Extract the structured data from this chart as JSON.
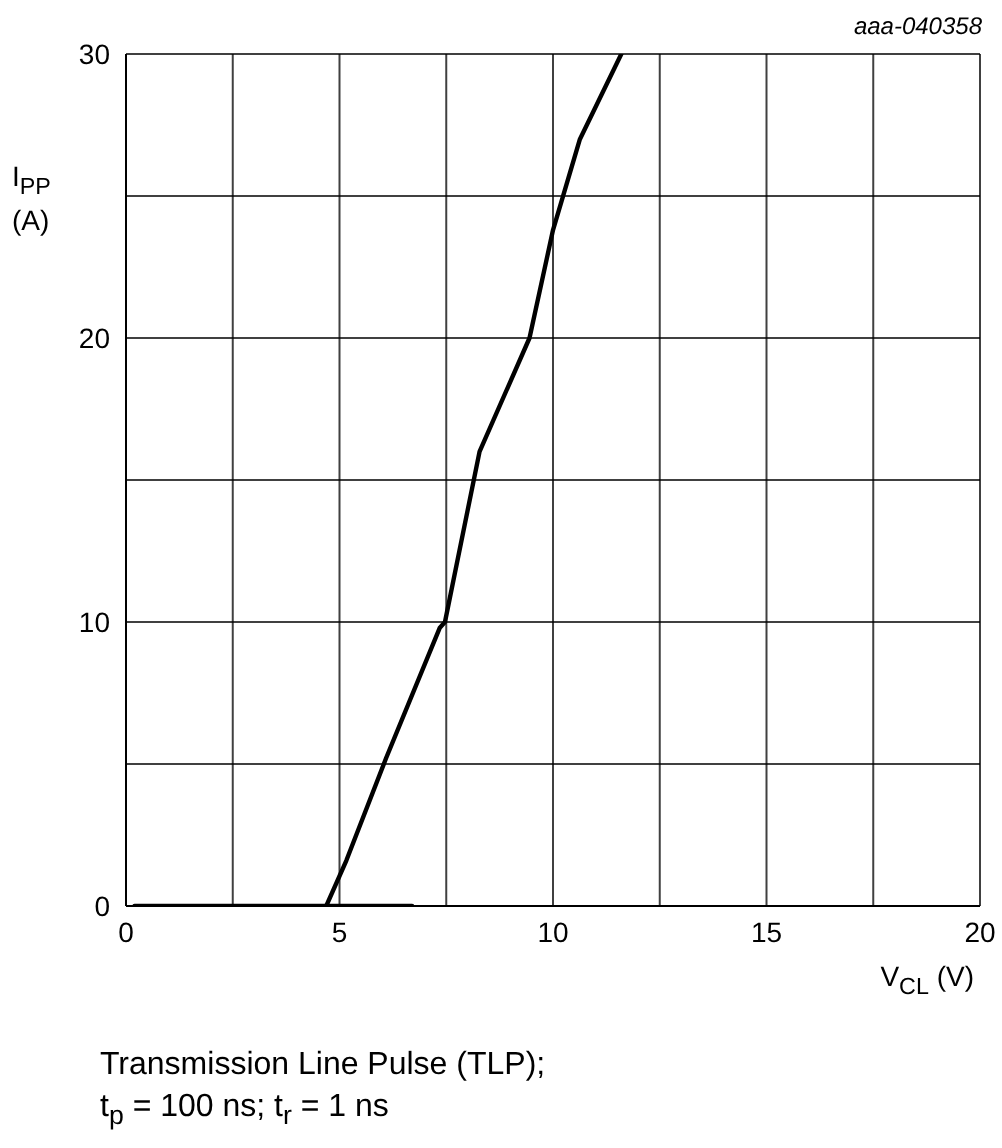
{
  "chart_data": {
    "type": "line",
    "xlabel": "V$_{CL}$ (V)",
    "ylabel": "I$_{PP}$ (A)",
    "annotations": [
      "aaa-040358",
      "Transmission Line Pulse (TLP);",
      "t$_{p}$ = 100 ns; t$_{r}$ = 1 ns"
    ],
    "series": [
      {
        "color": "#000000",
        "x": [
          0.2,
          6.7
        ],
        "values": [
          0,
          0
        ]
      },
      {
        "color": "#000000",
        "x": [
          4.69,
          5.16,
          6.09,
          7.35,
          7.47,
          8.28,
          9.45,
          10.0,
          10.63,
          11.6
        ],
        "values": [
          0,
          1.6,
          5.2,
          9.8,
          10,
          16,
          20,
          23.8,
          27,
          30
        ]
      }
    ],
    "xlim": [
      0,
      20
    ],
    "ylim": [
      0,
      30
    ],
    "xticks": [
      0,
      {
        "value": 2.5,
        "label": null
      },
      5,
      {
        "value": 7.5,
        "label": null
      },
      10,
      {
        "value": 12.5,
        "label": null
      },
      15,
      {
        "value": 17.5,
        "label": null
      },
      20
    ],
    "yticks": [
      0,
      {
        "value": 5,
        "label": null
      },
      10,
      {
        "value": 15,
        "label": null
      },
      20,
      {
        "value": 25,
        "label": null
      },
      30
    ],
    "grid": true,
    "marker": "none",
    "line_style": "solid"
  }
}
